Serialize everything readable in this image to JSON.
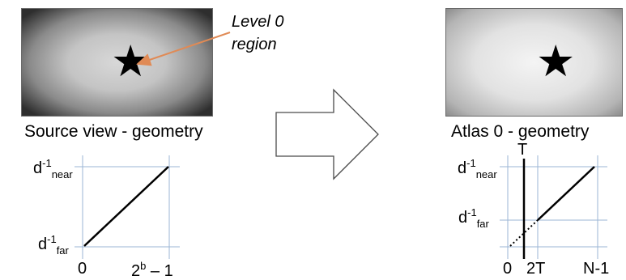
{
  "source": {
    "caption": "Source view - geometry",
    "callout": {
      "line1": "Level 0",
      "line2": "region"
    },
    "plot": {
      "y_near": {
        "base": "d",
        "sup": "-1",
        "sub": "near"
      },
      "y_far": {
        "base": "d",
        "sup": "-1",
        "sub": "far"
      },
      "x_zero": "0",
      "x_max": {
        "base": "2",
        "sup": "b",
        "rest": " – 1"
      }
    }
  },
  "atlas": {
    "caption": "Atlas 0 - geometry",
    "plot": {
      "t_label": "T",
      "y_near": {
        "base": "d",
        "sup": "-1",
        "sub": "near"
      },
      "y_far": {
        "base": "d",
        "sup": "-1",
        "sub": "far"
      },
      "x_zero": "0",
      "x_2t": "2T",
      "x_max": "N-1"
    }
  },
  "colors": {
    "callout_arrow": "#e08a55",
    "grid": "#9bb5d6",
    "line": "#000000"
  },
  "icons": {
    "star": "star-icon",
    "transform_arrow": "right-arrow-icon"
  }
}
